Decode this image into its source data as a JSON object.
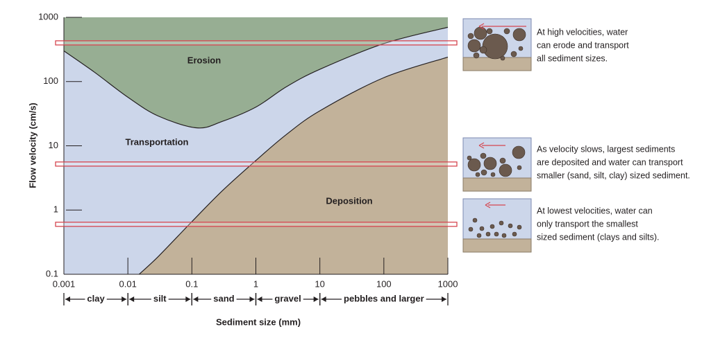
{
  "chart_data": {
    "type": "area",
    "x_label": "Sediment size (mm)",
    "y_label": "Flow velocity (cm/s)",
    "xscale": "log",
    "yscale": "log",
    "xlim": [
      0.001,
      1000
    ],
    "ylim": [
      0.1,
      1000
    ],
    "xticks": [
      0.001,
      0.01,
      0.1,
      1,
      10,
      100,
      1000
    ],
    "yticks": [
      0.1,
      1,
      10,
      100,
      1000
    ],
    "background": "#ccd6ea",
    "region_label": "Transportation",
    "series": [
      {
        "name": "Erosion",
        "color": "#97ae93",
        "fill": "above",
        "x": [
          0.001,
          0.003,
          0.01,
          0.03,
          0.12,
          0.3,
          1,
          3,
          10,
          100,
          1000
        ],
        "values": [
          300,
          140,
          57,
          29,
          19,
          24,
          40,
          83,
          155,
          390,
          700
        ]
      },
      {
        "name": "Deposition",
        "color": "#c2b29a",
        "fill": "below",
        "x": [
          0.015,
          0.03,
          0.1,
          0.3,
          1,
          3,
          10,
          100,
          1000
        ],
        "values": [
          0.1,
          0.19,
          0.66,
          2,
          5.9,
          15,
          35,
          115,
          240
        ]
      }
    ],
    "highlight_bands": [
      400,
      5.2,
      0.6
    ],
    "band_color": "#d6454f",
    "size_classes": [
      {
        "label": "clay",
        "range": [
          0.001,
          0.01
        ]
      },
      {
        "label": "silt",
        "range": [
          0.01,
          0.1
        ]
      },
      {
        "label": "sand",
        "range": [
          0.1,
          1
        ]
      },
      {
        "label": "gravel",
        "range": [
          1,
          10
        ]
      },
      {
        "label": "pebbles and larger",
        "range": [
          10,
          1000
        ]
      }
    ]
  },
  "panels": [
    {
      "caption": [
        "At high velocities, water",
        "can erode and transport",
        "all sediment sizes."
      ]
    },
    {
      "caption": [
        "As velocity slows, largest sediments",
        "are deposited and water can transport",
        "smaller (sand, silt, clay) sized sediment."
      ]
    },
    {
      "caption": [
        "At lowest velocities, water can",
        "only transport the smallest",
        "sized sediment (clays and silts)."
      ]
    }
  ]
}
